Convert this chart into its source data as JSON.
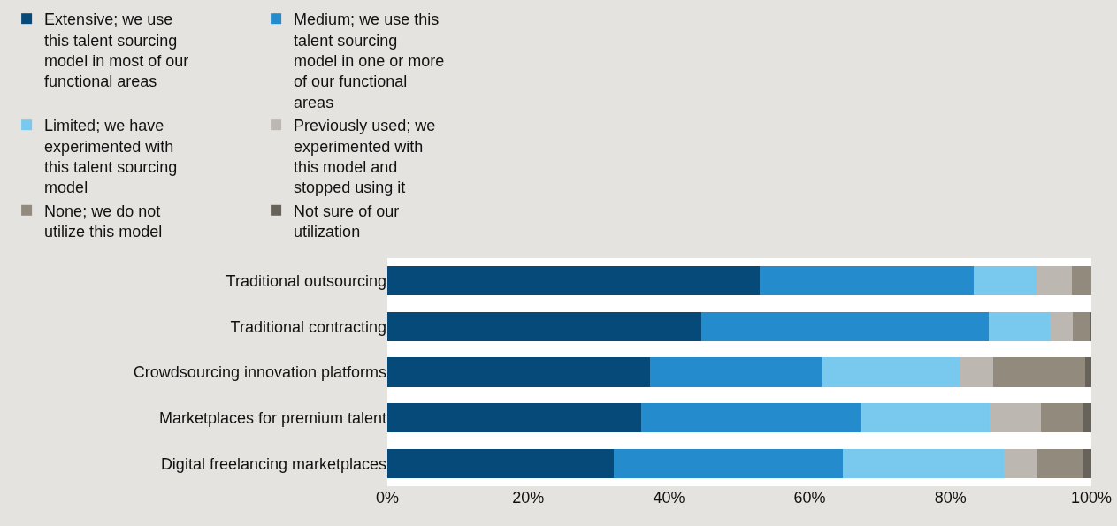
{
  "chart_data": {
    "type": "bar",
    "orientation": "horizontal",
    "stacked": true,
    "categories": [
      "Traditional outsourcing",
      "Traditional contracting",
      "Crowdsourcing innovation platforms",
      "Marketplaces for premium talent",
      "Digital freelancing marketplaces"
    ],
    "series": [
      {
        "name": "Extensive; we use this talent sourcing model in most of our functional areas",
        "color": "#054a78",
        "values": [
          52.9,
          44.6,
          37.3,
          36.1,
          32.2
        ]
      },
      {
        "name": "Medium; we use this talent sourcing model in one or more of our functional areas",
        "color": "#248bcd",
        "values": [
          30.4,
          40.8,
          24.4,
          31.1,
          32.5
        ]
      },
      {
        "name": "Limited; we have experimented with this talent sourcing model",
        "color": "#79c9ef",
        "values": [
          8.9,
          8.7,
          19.7,
          18.4,
          22.9
        ]
      },
      {
        "name": "Previously used; we experimented with this model and stopped using it",
        "color": "#bcb7b0",
        "values": [
          5.0,
          3.3,
          4.6,
          7.3,
          4.7
        ]
      },
      {
        "name": "None; we do not utilize this model",
        "color": "#938a7e",
        "values": [
          2.8,
          2.3,
          13.1,
          5.8,
          6.5
        ]
      },
      {
        "name": "Not sure of our utilization",
        "color": "#67625a",
        "values": [
          0,
          0.3,
          0.9,
          1.3,
          1.2
        ]
      }
    ],
    "xlim": [
      0,
      100
    ],
    "xticks": [
      {
        "value": 0,
        "label": "0%"
      },
      {
        "value": 20,
        "label": "20%"
      },
      {
        "value": 40,
        "label": "40%"
      },
      {
        "value": 60,
        "label": "60%"
      },
      {
        "value": 80,
        "label": "80%"
      },
      {
        "value": 100,
        "label": "100%"
      }
    ],
    "grid": false,
    "legend": "top"
  }
}
